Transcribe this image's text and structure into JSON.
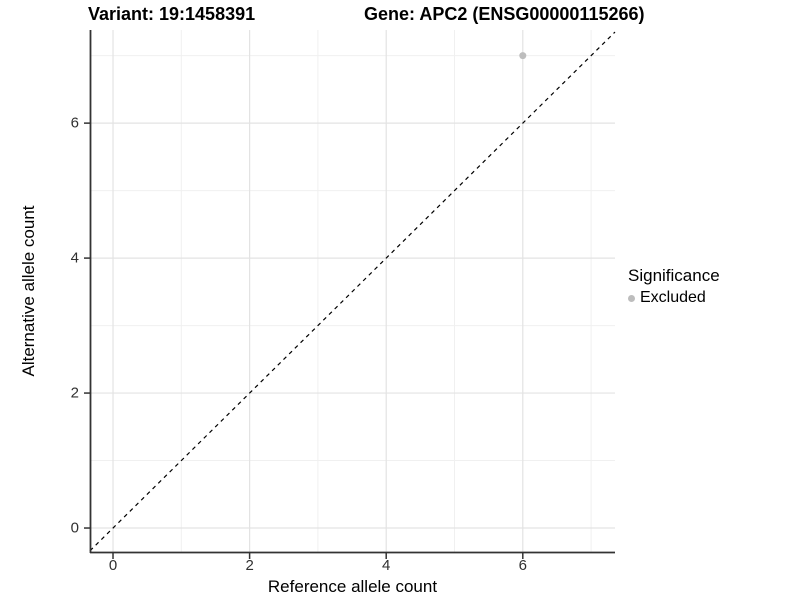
{
  "titles": {
    "variant": "Variant: 19:1458391",
    "gene": "Gene: APC2 (ENSG00000115266)"
  },
  "axes": {
    "x": {
      "label": "Reference allele count",
      "ticks": [
        0,
        2,
        4,
        6
      ],
      "major_gridlines": [
        0,
        2,
        4,
        6
      ],
      "minor_gridlines": [
        1,
        3,
        5,
        7
      ]
    },
    "y": {
      "label": "Alternative allele count",
      "ticks": [
        0,
        2,
        4,
        6
      ],
      "major_gridlines": [
        0,
        2,
        4,
        6
      ],
      "minor_gridlines": [
        1,
        3,
        5,
        7
      ]
    }
  },
  "legend": {
    "title": "Significance",
    "items": [
      {
        "label": "Excluded",
        "color": "#bdbdbd"
      }
    ]
  },
  "chart_data": {
    "type": "scatter",
    "title": "Variant: 19:1458391 | Gene: APC2 (ENSG00000115266)",
    "xlabel": "Reference allele count",
    "ylabel": "Alternative allele count",
    "xlim": [
      -0.337,
      7.35
    ],
    "ylim": [
      -0.37,
      7.38
    ],
    "grid": "on",
    "legend_position": "right",
    "series": [
      {
        "name": "Excluded",
        "color": "#bdbdbd",
        "points": [
          [
            6,
            7
          ]
        ]
      }
    ],
    "reference_line": {
      "type": "identity",
      "style": "dashed",
      "color": "#000000"
    }
  },
  "colors": {
    "major_grid": "#e3e3e3",
    "minor_grid": "#f0f0f0",
    "axis_line": "#333333",
    "tick_mark": "#333333",
    "point": "#bdbdbd"
  }
}
